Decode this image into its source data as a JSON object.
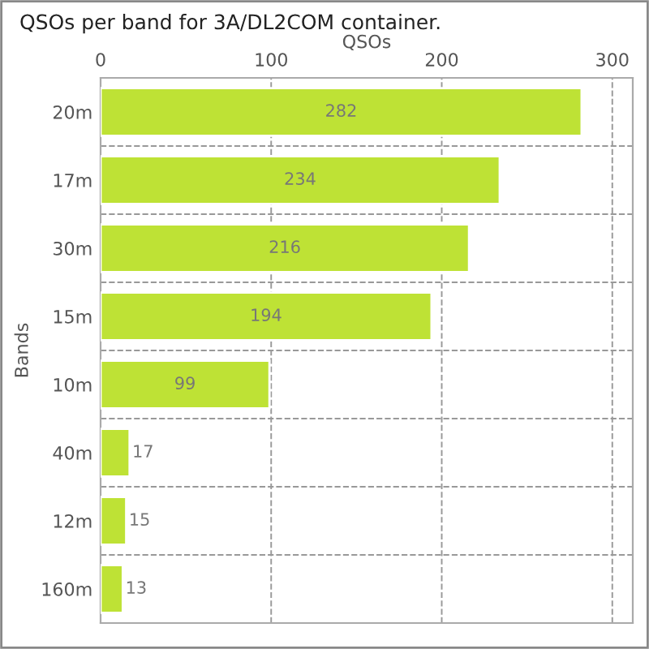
{
  "chart_data": {
    "type": "bar",
    "orientation": "horizontal",
    "title": "QSOs per band for 3A/DL2COM container.",
    "xlabel": "QSOs",
    "ylabel": "Bands",
    "categories": [
      "20m",
      "17m",
      "30m",
      "15m",
      "10m",
      "40m",
      "12m",
      "160m"
    ],
    "series": [
      {
        "color": "#bee235",
        "values": [
          282,
          234,
          216,
          194,
          99,
          17,
          15,
          13
        ]
      }
    ],
    "xlim": [
      0,
      312
    ],
    "xticks": [
      0,
      100,
      200,
      300
    ],
    "grid": true,
    "data_labels": true
  }
}
